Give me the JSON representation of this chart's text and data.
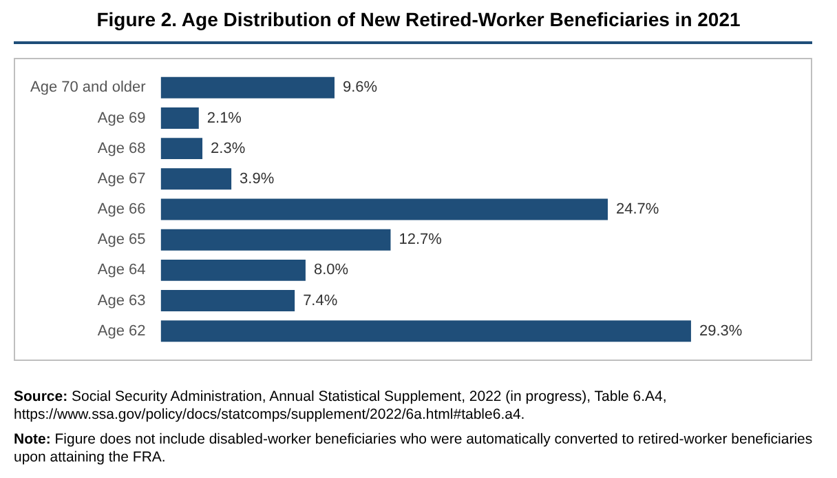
{
  "chart_data": {
    "type": "bar",
    "orientation": "horizontal",
    "title": "Figure 2. Age Distribution of New Retired-Worker Beneficiaries in 2021",
    "categories": [
      "Age 70 and older",
      "Age 69",
      "Age 68",
      "Age 67",
      "Age 66",
      "Age 65",
      "Age 64",
      "Age 63",
      "Age 62"
    ],
    "values": [
      9.6,
      2.1,
      2.3,
      3.9,
      24.7,
      12.7,
      8.0,
      7.4,
      29.3
    ],
    "value_labels": [
      "9.6%",
      "2.1%",
      "2.3%",
      "3.9%",
      "24.7%",
      "12.7%",
      "8.0%",
      "7.4%",
      "29.3%"
    ],
    "color": "#1f4e79",
    "legend": false,
    "tick_labels": "y",
    "annotations": [
      "Source: Social Security Administration, Annual Statistical Supplement, 2022 (in progress), Table 6.A4, https://www.ssa.gov/policy/docs/statcomps/supplement/2022/6a.html#table6.a4.",
      "Note: Figure does not include disabled-worker beneficiaries who were automatically converted to retired-worker beneficiaries upon attaining the FRA."
    ]
  }
}
